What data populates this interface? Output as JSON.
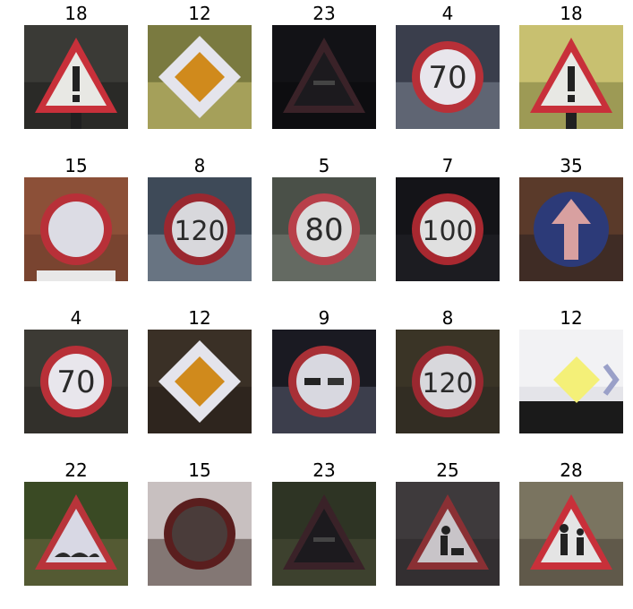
{
  "grid": {
    "items": [
      {
        "label": "18",
        "sign": "warning-exclamation",
        "bg": "#3a3a36",
        "bg2": "#1e1e1c"
      },
      {
        "label": "12",
        "sign": "priority-road",
        "bg": "#7a7a40",
        "bg2": "#c9c070"
      },
      {
        "label": "23",
        "sign": "warning-slippery",
        "bg": "#121216",
        "bg2": "#0a0a0d"
      },
      {
        "label": "4",
        "sign": "speed-limit-70",
        "bg": "#3a3e4c",
        "bg2": "#7d8594"
      },
      {
        "label": "18",
        "sign": "warning-exclamation",
        "bg": "#c8c070",
        "bg2": "#7a7a40"
      },
      {
        "label": "15",
        "sign": "no-vehicles",
        "bg": "#8c5038",
        "bg2": "#6a3a2a"
      },
      {
        "label": "8",
        "sign": "speed-limit-120",
        "bg": "#3e4a58",
        "bg2": "#8a98a6"
      },
      {
        "label": "5",
        "sign": "speed-limit-80",
        "bg": "#4a5048",
        "bg2": "#7a8078"
      },
      {
        "label": "7",
        "sign": "speed-limit-100",
        "bg": "#141418",
        "bg2": "#22232a"
      },
      {
        "label": "35",
        "sign": "ahead-only",
        "bg": "#5a3a2a",
        "bg2": "#2a2020"
      },
      {
        "label": "4",
        "sign": "speed-limit-70",
        "bg": "#3c3a34",
        "bg2": "#2a2824"
      },
      {
        "label": "12",
        "sign": "priority-road",
        "bg": "#3a3026",
        "bg2": "#241e18"
      },
      {
        "label": "9",
        "sign": "no-overtaking",
        "bg": "#1a1a22",
        "bg2": "#5a5c70"
      },
      {
        "label": "8",
        "sign": "speed-limit-120",
        "bg": "#3a3426",
        "bg2": "#2c2820"
      },
      {
        "label": "12",
        "sign": "priority-road-bright",
        "bg": "#f2f2f4",
        "bg2": "#d8d8e0"
      },
      {
        "label": "22",
        "sign": "warning-bumpy",
        "bg": "#3a4a24",
        "bg2": "#6a6840"
      },
      {
        "label": "15",
        "sign": "no-vehicles-dark",
        "bg": "#c8c0c0",
        "bg2": "#4a3a34"
      },
      {
        "label": "23",
        "sign": "warning-slippery",
        "bg": "#2e3424",
        "bg2": "#4a4c36"
      },
      {
        "label": "25",
        "sign": "warning-roadwork",
        "bg": "#3e3a3c",
        "bg2": "#2a2628"
      },
      {
        "label": "28",
        "sign": "warning-children",
        "bg": "#7a7460",
        "bg2": "#4a4438"
      }
    ]
  }
}
